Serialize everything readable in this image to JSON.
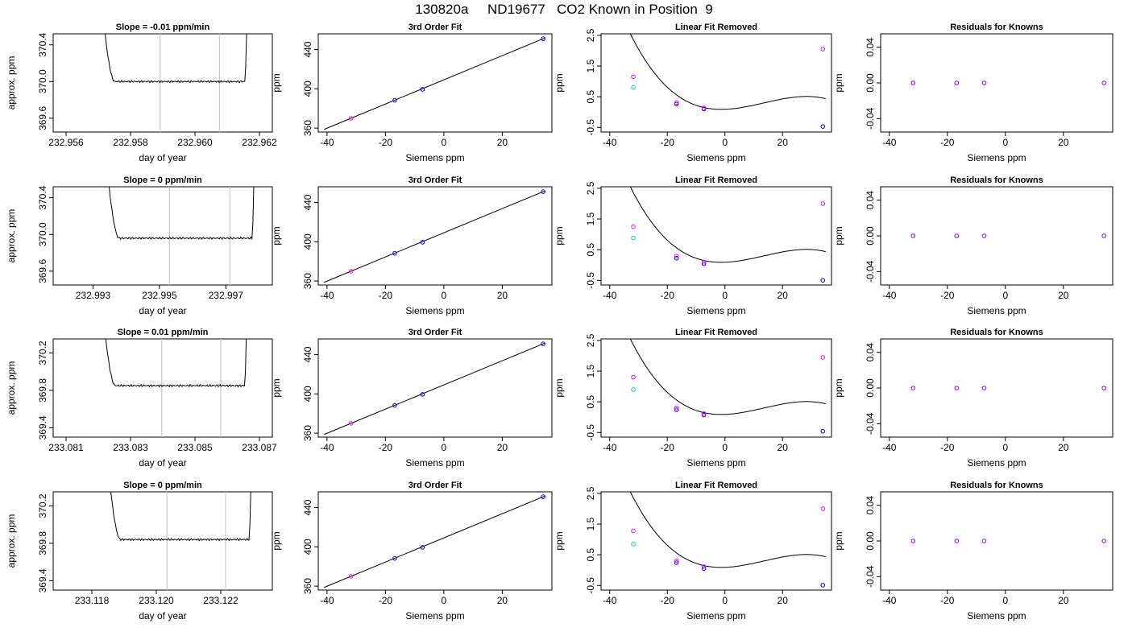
{
  "main_title": "130820a     ND19677   CO2 Known in Position  9",
  "colors": {
    "line": "#000000",
    "vline": "#c8c8c8",
    "known_points": "#0000ff",
    "raw_points": "#ff00ff",
    "alt_points": "#00cccc",
    "residual_points": "#8000ff"
  },
  "labels": {
    "fit_title": "3rd Order Fit",
    "lin_title": "Linear Fit Removed",
    "res_title": "Residuals for Knowns",
    "siemens": "Siemens ppm",
    "ppm": "ppm",
    "approx": "approx. ppm",
    "doy": "day of year"
  },
  "rows": [
    {
      "slope_title": "Slope =  -0.01  ppm/min",
      "ts": {
        "xlim": [
          232.9556,
          232.9624
        ],
        "ylim": [
          369.45,
          370.52
        ],
        "xticks": [
          "232.956",
          "232.958",
          "232.960",
          "232.962"
        ],
        "yticks": [
          "369.6",
          "370.0",
          "370.4"
        ],
        "start": 232.9571,
        "end": 232.96163,
        "baseline": 370.0,
        "vlines": [
          232.95892,
          232.96076
        ]
      },
      "known_y": [
        0.26,
        0.1,
        -0.47
      ],
      "pink_y": [
        1.15,
        0.31,
        0.14,
        2.05
      ],
      "cyan_y": 0.8
    },
    {
      "slope_title": "Slope =  0  ppm/min",
      "ts": {
        "xlim": [
          232.9918,
          232.9984
        ],
        "ylim": [
          369.45,
          370.52
        ],
        "xticks": [
          "232.993",
          "232.995",
          "232.997"
        ],
        "yticks": [
          "369.6",
          "370.0",
          "370.4"
        ],
        "start": 232.99338,
        "end": 232.99787,
        "baseline": 369.96,
        "vlines": [
          232.9953,
          232.99712
        ]
      },
      "known_y": [
        0.22,
        0.04,
        -0.5
      ],
      "pink_y": [
        1.25,
        0.29,
        0.09,
        2.0
      ],
      "cyan_y": 0.88
    },
    {
      "slope_title": "Slope =  0.01  ppm/min",
      "ts": {
        "xlim": [
          233.0806,
          233.0874
        ],
        "ylim": [
          369.3,
          370.35
        ],
        "xticks": [
          "233.081",
          "233.083",
          "233.085",
          "233.087"
        ],
        "yticks": [
          "369.4",
          "369.8",
          "370.2"
        ],
        "start": 233.08212,
        "end": 233.08662,
        "baseline": 369.85,
        "vlines": [
          233.08397,
          233.0858
        ]
      },
      "known_y": [
        0.24,
        0.07,
        -0.46
      ],
      "pink_y": [
        1.3,
        0.3,
        0.12,
        1.95
      ],
      "cyan_y": 0.9
    },
    {
      "slope_title": "Slope =  0  ppm/min",
      "ts": {
        "xlim": [
          233.1168,
          233.1236
        ],
        "ylim": [
          369.3,
          370.35
        ],
        "xticks": [
          "233.118",
          "233.120",
          "233.122"
        ],
        "yticks": [
          "369.4",
          "369.8",
          "370.2"
        ],
        "start": 233.11848,
        "end": 233.12296,
        "baseline": 369.84,
        "vlines": [
          233.12033,
          233.12215
        ]
      },
      "known_y": [
        0.24,
        0.05,
        -0.49
      ],
      "pink_y": [
        1.28,
        0.3,
        0.11,
        2.0
      ],
      "cyan_y": 0.85
    }
  ],
  "chart_data": {
    "type": "scatter",
    "known_x": [
      -31.8,
      -16.8,
      -7.3,
      34.0
    ],
    "known_ppm": [
      370.0,
      388.3,
      399.5,
      451.0
    ],
    "fit_panel": {
      "xlim": [
        -43,
        37
      ],
      "ylim": [
        356,
        456
      ],
      "xticks": [
        -40,
        -20,
        0,
        20
      ],
      "yticks": [
        360,
        400,
        440
      ]
    },
    "lin_panel": {
      "xlim": [
        -43,
        37
      ],
      "ylim": [
        -0.65,
        2.55
      ],
      "xticks": [
        -40,
        -20,
        0,
        20
      ],
      "yticks": [
        -0.5,
        0.5,
        1.5,
        2.5
      ]
    },
    "res_panel": {
      "xlim": [
        -43,
        37
      ],
      "ylim": [
        -0.055,
        0.055
      ],
      "xticks": [
        -40,
        -20,
        0,
        20
      ],
      "yticks": [
        -0.04,
        0.0,
        0.04
      ]
    },
    "cubic_coeffs": [
      0.09,
      0.00345,
      0.00132,
      -3.25e-05
    ],
    "residuals": [
      0.0,
      0.0,
      0.0,
      0.0
    ]
  }
}
